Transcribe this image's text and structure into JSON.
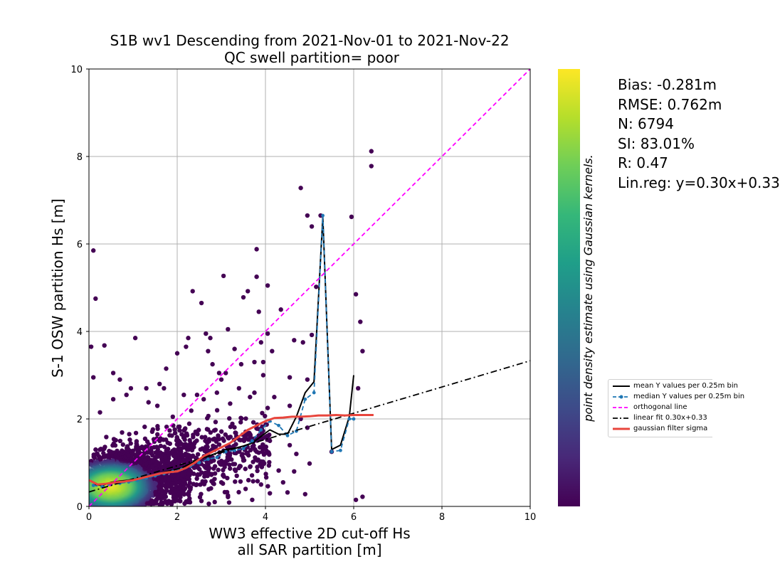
{
  "chart_data": {
    "type": "scatter",
    "title": "S1B wv1 Descending from 2021-Nov-01 to 2021-Nov-22",
    "subtitle": "QC swell partition= poor",
    "xlabel": "WW3 effective 2D cut-off Hs",
    "xlabel_line2": "all SAR partition [m]",
    "ylabel": "S-1 OSW partition Hs [m]",
    "xlim": [
      0,
      10
    ],
    "ylim": [
      0,
      10
    ],
    "x_ticks": [
      0,
      2,
      4,
      6,
      8,
      10
    ],
    "y_ticks": [
      0,
      2,
      4,
      6,
      8,
      10
    ],
    "grid": true,
    "colorbar_label": "point density estimate using Gaussian kernels.",
    "colormap": [
      "#440154",
      "#482878",
      "#3e4a89",
      "#31688e",
      "#26828e",
      "#1f9e89",
      "#35b779",
      "#6ece58",
      "#b5de2b",
      "#fde725"
    ],
    "outlier_color": "#440154",
    "outlier_points": [
      [
        0.1,
        5.85
      ],
      [
        0.15,
        4.75
      ],
      [
        0.05,
        3.65
      ],
      [
        0.1,
        2.95
      ],
      [
        0.35,
        3.68
      ],
      [
        0.55,
        3.05
      ],
      [
        0.7,
        2.9
      ],
      [
        0.85,
        2.55
      ],
      [
        1.05,
        3.85
      ],
      [
        1.3,
        2.7
      ],
      [
        1.6,
        2.8
      ],
      [
        1.7,
        2.7
      ],
      [
        1.75,
        3.15
      ],
      [
        0.95,
        2.7
      ],
      [
        1.55,
        2.3
      ],
      [
        2.0,
        3.5
      ],
      [
        2.2,
        3.65
      ],
      [
        2.25,
        3.85
      ],
      [
        2.35,
        4.92
      ],
      [
        2.55,
        4.65
      ],
      [
        2.65,
        3.95
      ],
      [
        2.75,
        3.85
      ],
      [
        2.8,
        3.25
      ],
      [
        2.7,
        3.55
      ],
      [
        2.95,
        3.05
      ],
      [
        3.05,
        5.27
      ],
      [
        3.15,
        4.05
      ],
      [
        3.1,
        3.05
      ],
      [
        3.3,
        3.6
      ],
      [
        3.45,
        3.25
      ],
      [
        3.5,
        4.78
      ],
      [
        3.6,
        4.92
      ],
      [
        3.8,
        5.88
      ],
      [
        3.8,
        5.25
      ],
      [
        3.85,
        4.45
      ],
      [
        4.05,
        5.05
      ],
      [
        3.9,
        3.75
      ],
      [
        3.95,
        3.3
      ],
      [
        4.05,
        3.95
      ],
      [
        4.15,
        3.55
      ],
      [
        4.35,
        4.5
      ],
      [
        4.55,
        2.95
      ],
      [
        4.65,
        3.8
      ],
      [
        4.85,
        3.75
      ],
      [
        4.95,
        2.9
      ],
      [
        4.8,
        7.28
      ],
      [
        4.95,
        6.65
      ],
      [
        5.05,
        6.4
      ],
      [
        5.25,
        6.65
      ],
      [
        5.15,
        5.02
      ],
      [
        5.05,
        3.92
      ],
      [
        5.5,
        1.25
      ],
      [
        5.95,
        6.62
      ],
      [
        6.05,
        4.85
      ],
      [
        6.15,
        4.22
      ],
      [
        6.2,
        3.55
      ],
      [
        6.1,
        2.7
      ],
      [
        6.4,
        8.12
      ],
      [
        6.4,
        7.78
      ],
      [
        6.2,
        0.22
      ],
      [
        6.05,
        0.15
      ],
      [
        5.0,
        0.98
      ],
      [
        4.9,
        0.28
      ],
      [
        4.65,
        0.8
      ],
      [
        4.55,
        1.4
      ],
      [
        4.3,
        0.82
      ],
      [
        4.5,
        0.32
      ],
      [
        4.4,
        0.55
      ],
      [
        3.95,
        3.0
      ],
      [
        3.75,
        3.3
      ],
      [
        2.45,
        2.55
      ],
      [
        2.6,
        2.45
      ],
      [
        2.9,
        2.6
      ],
      [
        3.0,
        2.9
      ],
      [
        3.4,
        2.7
      ],
      [
        3.65,
        2.5
      ],
      [
        3.75,
        2.6
      ],
      [
        3.2,
        2.35
      ],
      [
        0.55,
        2.45
      ],
      [
        0.25,
        2.15
      ],
      [
        1.35,
        2.38
      ],
      [
        1.9,
        2.05
      ],
      [
        2.15,
        2.55
      ],
      [
        4.2,
        2.5
      ],
      [
        4.05,
        2.25
      ],
      [
        4.55,
        2.3
      ],
      [
        4.8,
        2.0
      ],
      [
        4.95,
        1.8
      ],
      [
        4.7,
        1.2
      ],
      [
        4.1,
        0.3
      ],
      [
        3.9,
        0.5
      ],
      [
        3.7,
        0.15
      ],
      [
        3.55,
        0.4
      ],
      [
        3.35,
        0.7
      ],
      [
        3.15,
        0.25
      ],
      [
        3.0,
        0.55
      ],
      [
        2.85,
        0.1
      ],
      [
        3.5,
        1.05
      ],
      [
        3.8,
        1.25
      ],
      [
        4.1,
        1.5
      ]
    ],
    "series": [
      {
        "name": "mean Y values per 0",
        "style": "solid",
        "color": "#000000",
        "x": [
          0.1,
          0.3,
          0.5,
          0.7,
          0.9,
          1.1,
          1.3,
          1.5,
          1.7,
          1.9,
          2.1,
          2.3,
          2.5,
          2.7,
          2.9,
          3.1,
          3.3,
          3.5,
          3.7,
          3.9,
          4.1,
          4.3,
          4.5,
          4.7,
          4.9,
          5.1,
          5.3,
          5.5,
          5.7,
          5.9,
          6.0
        ],
        "y": [
          0.5,
          0.48,
          0.55,
          0.58,
          0.6,
          0.63,
          0.68,
          0.73,
          0.78,
          0.83,
          0.88,
          0.98,
          1.08,
          1.15,
          1.22,
          1.3,
          1.33,
          1.38,
          1.45,
          1.6,
          1.75,
          1.65,
          1.65,
          2.05,
          2.6,
          2.85,
          6.62,
          1.3,
          1.4,
          2.05,
          3.0
        ]
      },
      {
        "name": "median Y values per",
        "style": "dashed-dots",
        "color": "#1f77b4",
        "x": [
          0.1,
          0.3,
          0.5,
          0.7,
          0.9,
          1.1,
          1.3,
          1.5,
          1.7,
          1.9,
          2.1,
          2.3,
          2.5,
          2.7,
          2.9,
          3.1,
          3.3,
          3.5,
          3.7,
          3.9,
          4.1,
          4.3,
          4.5,
          4.7,
          4.9,
          5.1,
          5.3,
          5.5,
          5.7,
          5.9,
          6.0
        ],
        "y": [
          0.48,
          0.45,
          0.5,
          0.53,
          0.56,
          0.6,
          0.65,
          0.7,
          0.75,
          0.8,
          0.85,
          0.92,
          1.0,
          1.08,
          1.12,
          1.25,
          1.28,
          1.32,
          1.5,
          1.75,
          1.95,
          1.85,
          1.62,
          1.72,
          2.45,
          2.6,
          6.65,
          1.25,
          1.28,
          2.0,
          2.0
        ]
      },
      {
        "name": "orthogonal line",
        "style": "dashed",
        "color": "#ff00ff",
        "x": [
          0,
          10
        ],
        "y": [
          0,
          10
        ]
      },
      {
        "name": "linear fit 0.30x+0.3",
        "style": "dashdot",
        "color": "#000000",
        "x": [
          0,
          10
        ],
        "y": [
          0.33,
          3.33
        ]
      },
      {
        "name": "gaussian filter sigma",
        "style": "solid-thick",
        "color": "#e8453c",
        "x": [
          0.0,
          0.2,
          0.4,
          0.6,
          0.8,
          1.0,
          1.2,
          1.4,
          1.6,
          1.8,
          2.0,
          2.2,
          2.4,
          2.6,
          2.8,
          3.0,
          3.2,
          3.4,
          3.6,
          3.8,
          4.0,
          4.2,
          4.4,
          4.6,
          4.8,
          5.0,
          5.2,
          5.4,
          5.6,
          5.8,
          6.0,
          6.2,
          6.45
        ],
        "y": [
          0.6,
          0.5,
          0.52,
          0.55,
          0.57,
          0.6,
          0.65,
          0.7,
          0.75,
          0.78,
          0.8,
          0.88,
          1.0,
          1.15,
          1.25,
          1.35,
          1.45,
          1.6,
          1.75,
          1.85,
          1.95,
          2.02,
          2.03,
          2.05,
          2.05,
          2.06,
          2.08,
          2.08,
          2.09,
          2.08,
          2.09,
          2.09,
          2.09
        ]
      }
    ]
  },
  "stats": {
    "bias": "Bias: -0.281m",
    "rmse": "RMSE: 0.762m",
    "n": "N: 6794",
    "si": "SI: 83.01%",
    "r": "R: 0.47",
    "linreg": "Lin.reg: y=0.30x+0.33"
  },
  "legend": [
    {
      "label": "mean Y values per 0.25m bin"
    },
    {
      "label": "median Y values per 0.25m bin"
    },
    {
      "label": "orthogonal line"
    },
    {
      "label": "linear fit 0.30x+0.33"
    },
    {
      "label": "gaussian filter sigma"
    }
  ]
}
